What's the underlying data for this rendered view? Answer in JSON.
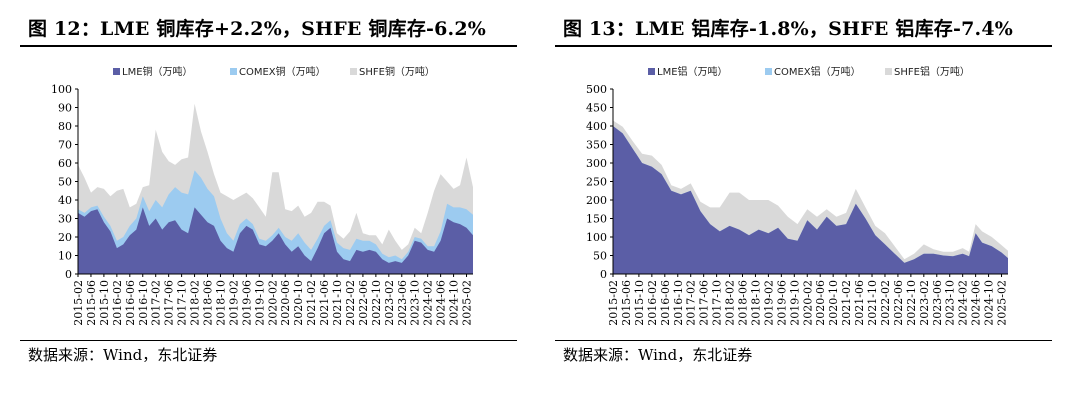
{
  "source_text": "数据来源：Wind，东北证券",
  "chart_data": [
    {
      "id": "copper",
      "type": "area",
      "stacked": true,
      "title": "图 12：LME 铜库存+2.2%，SHFE 铜库存-6.2%",
      "xlabel": "",
      "ylabel": "",
      "ylim": [
        0,
        100
      ],
      "yticks": [
        0,
        10,
        20,
        30,
        40,
        50,
        60,
        70,
        80,
        90,
        100
      ],
      "legend_position": "top-center",
      "series": [
        {
          "name": "LME铜（万吨）",
          "color": "#5b5ea6"
        },
        {
          "name": "COMEX铜（万吨）",
          "color": "#9ccbf0"
        },
        {
          "name": "SHFE铜（万吨）",
          "color": "#d9d9d9"
        }
      ],
      "x_labels": [
        "2015-02",
        "2015-06",
        "2015-10",
        "2016-02",
        "2016-06",
        "2016-10",
        "2017-02",
        "2017-06",
        "2017-10",
        "2018-02",
        "2018-06",
        "2018-10",
        "2019-02",
        "2019-06",
        "2019-10",
        "2020-02",
        "2020-06",
        "2020-10",
        "2021-02",
        "2021-06",
        "2021-10",
        "2022-02",
        "2022-06",
        "2022-10",
        "2023-02",
        "2023-06",
        "2023-10",
        "2024-02",
        "2024-06",
        "2024-10",
        "2025-02"
      ],
      "points": [
        {
          "x": "2015-02",
          "lme": 33,
          "comex": 2,
          "shfe": 24
        },
        {
          "x": "2015-04",
          "lme": 31,
          "comex": 2,
          "shfe": 19
        },
        {
          "x": "2015-06",
          "lme": 34,
          "comex": 2,
          "shfe": 8
        },
        {
          "x": "2015-08",
          "lme": 35,
          "comex": 2,
          "shfe": 10
        },
        {
          "x": "2015-10",
          "lme": 28,
          "comex": 3,
          "shfe": 15
        },
        {
          "x": "2015-12",
          "lme": 23,
          "comex": 3,
          "shfe": 16
        },
        {
          "x": "2016-02",
          "lme": 14,
          "comex": 4,
          "shfe": 27
        },
        {
          "x": "2016-04",
          "lme": 16,
          "comex": 4,
          "shfe": 26
        },
        {
          "x": "2016-06",
          "lme": 21,
          "comex": 5,
          "shfe": 10
        },
        {
          "x": "2016-08",
          "lme": 24,
          "comex": 6,
          "shfe": 8
        },
        {
          "x": "2016-10",
          "lme": 36,
          "comex": 6,
          "shfe": 5
        },
        {
          "x": "2016-12",
          "lme": 26,
          "comex": 8,
          "shfe": 14
        },
        {
          "x": "2017-02",
          "lme": 30,
          "comex": 10,
          "shfe": 38
        },
        {
          "x": "2017-04",
          "lme": 24,
          "comex": 12,
          "shfe": 30
        },
        {
          "x": "2017-06",
          "lme": 28,
          "comex": 15,
          "shfe": 18
        },
        {
          "x": "2017-08",
          "lme": 29,
          "comex": 18,
          "shfe": 12
        },
        {
          "x": "2017-10",
          "lme": 24,
          "comex": 20,
          "shfe": 18
        },
        {
          "x": "2017-12",
          "lme": 22,
          "comex": 21,
          "shfe": 20
        },
        {
          "x": "2018-02",
          "lme": 36,
          "comex": 20,
          "shfe": 36
        },
        {
          "x": "2018-04",
          "lme": 32,
          "comex": 20,
          "shfe": 25
        },
        {
          "x": "2018-06",
          "lme": 28,
          "comex": 18,
          "shfe": 20
        },
        {
          "x": "2018-08",
          "lme": 26,
          "comex": 16,
          "shfe": 12
        },
        {
          "x": "2018-10",
          "lme": 18,
          "comex": 12,
          "shfe": 14
        },
        {
          "x": "2018-12",
          "lme": 14,
          "comex": 8,
          "shfe": 20
        },
        {
          "x": "2019-02",
          "lme": 12,
          "comex": 6,
          "shfe": 22
        },
        {
          "x": "2019-04",
          "lme": 22,
          "comex": 5,
          "shfe": 15
        },
        {
          "x": "2019-06",
          "lme": 26,
          "comex": 4,
          "shfe": 14
        },
        {
          "x": "2019-08",
          "lme": 24,
          "comex": 3,
          "shfe": 14
        },
        {
          "x": "2019-10",
          "lme": 16,
          "comex": 3,
          "shfe": 17
        },
        {
          "x": "2019-12",
          "lme": 15,
          "comex": 3,
          "shfe": 13
        },
        {
          "x": "2020-02",
          "lme": 18,
          "comex": 3,
          "shfe": 34
        },
        {
          "x": "2020-04",
          "lme": 22,
          "comex": 3,
          "shfe": 30
        },
        {
          "x": "2020-06",
          "lme": 16,
          "comex": 4,
          "shfe": 15
        },
        {
          "x": "2020-08",
          "lme": 12,
          "comex": 6,
          "shfe": 16
        },
        {
          "x": "2020-10",
          "lme": 15,
          "comex": 7,
          "shfe": 15
        },
        {
          "x": "2020-12",
          "lme": 10,
          "comex": 7,
          "shfe": 14
        },
        {
          "x": "2021-02",
          "lme": 7,
          "comex": 6,
          "shfe": 20
        },
        {
          "x": "2021-04",
          "lme": 14,
          "comex": 5,
          "shfe": 20
        },
        {
          "x": "2021-06",
          "lme": 22,
          "comex": 4,
          "shfe": 13
        },
        {
          "x": "2021-08",
          "lme": 25,
          "comex": 4,
          "shfe": 8
        },
        {
          "x": "2021-10",
          "lme": 12,
          "comex": 5,
          "shfe": 5
        },
        {
          "x": "2021-12",
          "lme": 8,
          "comex": 6,
          "shfe": 5
        },
        {
          "x": "2022-02",
          "lme": 7,
          "comex": 6,
          "shfe": 10
        },
        {
          "x": "2022-04",
          "lme": 13,
          "comex": 6,
          "shfe": 14
        },
        {
          "x": "2022-06",
          "lme": 12,
          "comex": 6,
          "shfe": 4
        },
        {
          "x": "2022-08",
          "lme": 13,
          "comex": 5,
          "shfe": 3
        },
        {
          "x": "2022-10",
          "lme": 12,
          "comex": 4,
          "shfe": 5
        },
        {
          "x": "2022-12",
          "lme": 8,
          "comex": 3,
          "shfe": 5
        },
        {
          "x": "2023-02",
          "lme": 6,
          "comex": 3,
          "shfe": 15
        },
        {
          "x": "2023-04",
          "lme": 7,
          "comex": 3,
          "shfe": 8
        },
        {
          "x": "2023-06",
          "lme": 6,
          "comex": 2,
          "shfe": 5
        },
        {
          "x": "2023-08",
          "lme": 10,
          "comex": 2,
          "shfe": 4
        },
        {
          "x": "2023-10",
          "lme": 18,
          "comex": 2,
          "shfe": 5
        },
        {
          "x": "2023-12",
          "lme": 17,
          "comex": 2,
          "shfe": 3
        },
        {
          "x": "2024-02",
          "lme": 13,
          "comex": 2,
          "shfe": 18
        },
        {
          "x": "2024-04",
          "lme": 12,
          "comex": 3,
          "shfe": 30
        },
        {
          "x": "2024-06",
          "lme": 18,
          "comex": 5,
          "shfe": 31
        },
        {
          "x": "2024-08",
          "lme": 30,
          "comex": 8,
          "shfe": 12
        },
        {
          "x": "2024-10",
          "lme": 28,
          "comex": 8,
          "shfe": 10
        },
        {
          "x": "2024-12",
          "lme": 27,
          "comex": 9,
          "shfe": 12
        },
        {
          "x": "2025-02",
          "lme": 25,
          "comex": 10,
          "shfe": 28
        },
        {
          "x": "2025-04",
          "lme": 21,
          "comex": 11,
          "shfe": 15
        }
      ]
    },
    {
      "id": "aluminum",
      "type": "area",
      "stacked": true,
      "title": "图 13：LME 铝库存-1.8%，SHFE 铝库存-7.4%",
      "xlabel": "",
      "ylabel": "",
      "ylim": [
        0,
        500
      ],
      "yticks": [
        0,
        50,
        100,
        150,
        200,
        250,
        300,
        350,
        400,
        450,
        500
      ],
      "legend_position": "top-center",
      "series": [
        {
          "name": "LME铝（万吨）",
          "color": "#5b5ea6"
        },
        {
          "name": "COMEX铝（万吨）",
          "color": "#9ccbf0"
        },
        {
          "name": "SHFE铝（万吨）",
          "color": "#d9d9d9"
        }
      ],
      "x_labels": [
        "2015-02",
        "2015-06",
        "2015-10",
        "2016-02",
        "2016-06",
        "2016-10",
        "2017-02",
        "2017-06",
        "2017-10",
        "2018-02",
        "2018-06",
        "2018-10",
        "2019-02",
        "2019-06",
        "2019-10",
        "2020-02",
        "2020-06",
        "2020-10",
        "2021-02",
        "2021-06",
        "2021-10",
        "2022-02",
        "2022-06",
        "2022-10",
        "2023-02",
        "2023-06",
        "2023-10",
        "2024-02",
        "2024-06",
        "2024-10",
        "2025-02"
      ],
      "points": [
        {
          "x": "2015-02",
          "lme": 400,
          "comex": 0,
          "shfe": 15
        },
        {
          "x": "2015-05",
          "lme": 380,
          "comex": 0,
          "shfe": 18
        },
        {
          "x": "2015-08",
          "lme": 340,
          "comex": 0,
          "shfe": 20
        },
        {
          "x": "2015-11",
          "lme": 300,
          "comex": 0,
          "shfe": 25
        },
        {
          "x": "2016-02",
          "lme": 290,
          "comex": 0,
          "shfe": 30
        },
        {
          "x": "2016-05",
          "lme": 270,
          "comex": 0,
          "shfe": 25
        },
        {
          "x": "2016-08",
          "lme": 225,
          "comex": 0,
          "shfe": 15
        },
        {
          "x": "2016-11",
          "lme": 215,
          "comex": 0,
          "shfe": 15
        },
        {
          "x": "2017-02",
          "lme": 225,
          "comex": 0,
          "shfe": 20
        },
        {
          "x": "2017-05",
          "lme": 170,
          "comex": 0,
          "shfe": 25
        },
        {
          "x": "2017-08",
          "lme": 135,
          "comex": 0,
          "shfe": 45
        },
        {
          "x": "2017-11",
          "lme": 115,
          "comex": 0,
          "shfe": 65
        },
        {
          "x": "2018-02",
          "lme": 130,
          "comex": 0,
          "shfe": 90
        },
        {
          "x": "2018-05",
          "lme": 120,
          "comex": 0,
          "shfe": 100
        },
        {
          "x": "2018-08",
          "lme": 105,
          "comex": 0,
          "shfe": 95
        },
        {
          "x": "2018-11",
          "lme": 120,
          "comex": 0,
          "shfe": 80
        },
        {
          "x": "2019-02",
          "lme": 110,
          "comex": 0,
          "shfe": 90
        },
        {
          "x": "2019-05",
          "lme": 125,
          "comex": 0,
          "shfe": 60
        },
        {
          "x": "2019-08",
          "lme": 95,
          "comex": 0,
          "shfe": 60
        },
        {
          "x": "2019-11",
          "lme": 90,
          "comex": 0,
          "shfe": 45
        },
        {
          "x": "2020-02",
          "lme": 145,
          "comex": 0,
          "shfe": 30
        },
        {
          "x": "2020-05",
          "lme": 120,
          "comex": 0,
          "shfe": 35
        },
        {
          "x": "2020-08",
          "lme": 155,
          "comex": 0,
          "shfe": 20
        },
        {
          "x": "2020-11",
          "lme": 130,
          "comex": 0,
          "shfe": 25
        },
        {
          "x": "2021-02",
          "lme": 135,
          "comex": 0,
          "shfe": 30
        },
        {
          "x": "2021-05",
          "lme": 190,
          "comex": 0,
          "shfe": 40
        },
        {
          "x": "2021-08",
          "lme": 150,
          "comex": 0,
          "shfe": 30
        },
        {
          "x": "2021-11",
          "lme": 105,
          "comex": 0,
          "shfe": 25
        },
        {
          "x": "2022-02",
          "lme": 80,
          "comex": 0,
          "shfe": 30
        },
        {
          "x": "2022-05",
          "lme": 55,
          "comex": 0,
          "shfe": 20
        },
        {
          "x": "2022-08",
          "lme": 30,
          "comex": 0,
          "shfe": 10
        },
        {
          "x": "2022-11",
          "lme": 40,
          "comex": 0,
          "shfe": 15
        },
        {
          "x": "2023-02",
          "lme": 55,
          "comex": 0,
          "shfe": 25
        },
        {
          "x": "2023-05",
          "lme": 55,
          "comex": 0,
          "shfe": 12
        },
        {
          "x": "2023-08",
          "lme": 50,
          "comex": 0,
          "shfe": 10
        },
        {
          "x": "2023-11",
          "lme": 48,
          "comex": 0,
          "shfe": 12
        },
        {
          "x": "2024-02",
          "lme": 55,
          "comex": 0,
          "shfe": 15
        },
        {
          "x": "2024-04",
          "lme": 48,
          "comex": 0,
          "shfe": 12
        },
        {
          "x": "2024-06",
          "lme": 110,
          "comex": 0,
          "shfe": 25
        },
        {
          "x": "2024-08",
          "lme": 85,
          "comex": 0,
          "shfe": 30
        },
        {
          "x": "2024-11",
          "lme": 75,
          "comex": 0,
          "shfe": 25
        },
        {
          "x": "2025-02",
          "lme": 58,
          "comex": 0,
          "shfe": 20
        },
        {
          "x": "2025-04",
          "lme": 43,
          "comex": 0,
          "shfe": 20
        }
      ]
    }
  ]
}
